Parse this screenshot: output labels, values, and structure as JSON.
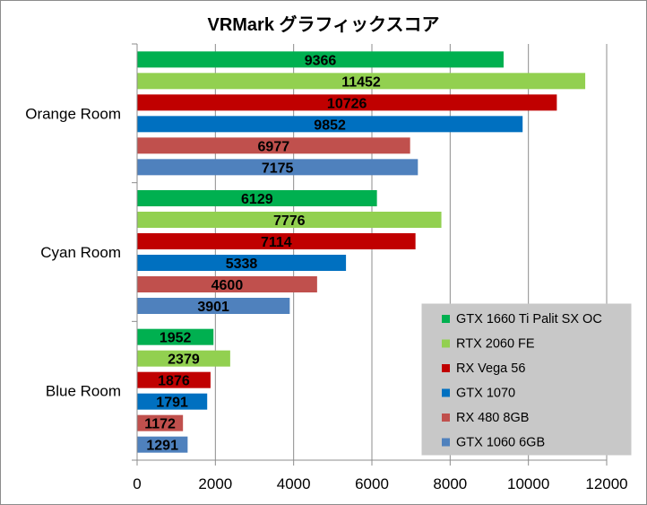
{
  "chart_data": {
    "type": "bar",
    "orientation": "horizontal",
    "title": "VRMark グラフィックスコア",
    "xlabel": "",
    "ylabel": "",
    "xlim": [
      0,
      12000
    ],
    "xticks": [
      0,
      2000,
      4000,
      6000,
      8000,
      10000,
      12000
    ],
    "xtick_labels": [
      "0",
      "2000",
      "4000",
      "6000",
      "8000",
      "10000",
      "12000"
    ],
    "grid": true,
    "legend_position": "bottom-right",
    "categories": [
      "Orange Room",
      "Cyan Room",
      "Blue Room"
    ],
    "series": [
      {
        "name": "GTX 1660 Ti Palit SX OC",
        "color": "#00b050",
        "values": [
          9366,
          6129,
          1952
        ]
      },
      {
        "name": "RTX 2060 FE",
        "color": "#92d050",
        "values": [
          11452,
          7776,
          2379
        ]
      },
      {
        "name": "RX Vega 56",
        "color": "#c00000",
        "values": [
          10726,
          7114,
          1876
        ]
      },
      {
        "name": "GTX 1070",
        "color": "#0070c0",
        "values": [
          9852,
          5338,
          1791
        ]
      },
      {
        "name": "RX 480 8GB",
        "color": "#c0504d",
        "values": [
          6977,
          4600,
          1172
        ]
      },
      {
        "name": "GTX 1060 6GB",
        "color": "#4f81bd",
        "values": [
          7175,
          3901,
          1291
        ]
      }
    ]
  }
}
